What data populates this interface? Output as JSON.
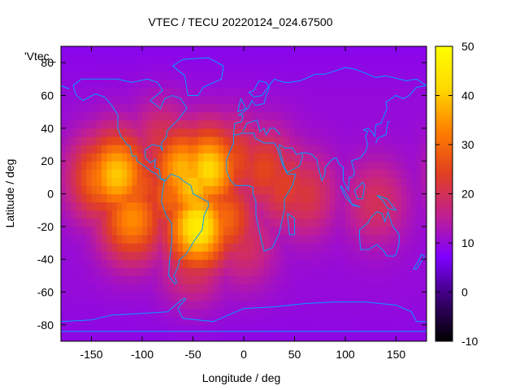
{
  "chart_data": {
    "type": "heatmap",
    "title": "VTEC / TECU 20220124_024.67500",
    "xlabel": "Longitude / deg",
    "ylabel": "Latitude / deg",
    "xlim": [
      -180,
      180
    ],
    "ylim": [
      -90,
      90
    ],
    "x_ticks": [
      "-150",
      "-100",
      "-50",
      "0",
      "50",
      "100",
      "150"
    ],
    "y_ticks": [
      "-80",
      "-60",
      "-40",
      "-20",
      "0",
      "20",
      "40",
      "60",
      "80"
    ],
    "colorbar": {
      "min": -10,
      "max": 50,
      "ticks": [
        "-10",
        "0",
        "10",
        "20",
        "30",
        "40",
        "50"
      ],
      "palette": [
        "#000000",
        "#3a0071",
        "#7e00ff",
        "#c2208f",
        "#e2401f",
        "#ff8000",
        "#ffd900",
        "#ffff00"
      ]
    },
    "legend_entry": "'Vtec_",
    "background_value": 10,
    "hotspots": [
      {
        "lon": -140,
        "lat": 10,
        "value": 32
      },
      {
        "lon": -125,
        "lat": 12,
        "value": 40
      },
      {
        "lon": -110,
        "lat": -15,
        "value": 34
      },
      {
        "lon": -105,
        "lat": 5,
        "value": 28
      },
      {
        "lon": -80,
        "lat": 30,
        "value": 22
      },
      {
        "lon": -70,
        "lat": 0,
        "value": 30
      },
      {
        "lon": -60,
        "lat": 15,
        "value": 38
      },
      {
        "lon": -50,
        "lat": 5,
        "value": 40
      },
      {
        "lon": -45,
        "lat": -20,
        "value": 46
      },
      {
        "lon": -35,
        "lat": 15,
        "value": 42
      },
      {
        "lon": -20,
        "lat": -15,
        "value": 30
      },
      {
        "lon": -50,
        "lat": -40,
        "value": 22
      },
      {
        "lon": -10,
        "lat": 20,
        "value": 26
      },
      {
        "lon": 20,
        "lat": 15,
        "value": 25
      },
      {
        "lon": 40,
        "lat": 5,
        "value": 24
      },
      {
        "lon": 60,
        "lat": 0,
        "value": 22
      },
      {
        "lon": 130,
        "lat": -5,
        "value": 20
      },
      {
        "lon": 0,
        "lat": -30,
        "value": 20
      }
    ]
  },
  "coastline_color": "#00a0ff"
}
